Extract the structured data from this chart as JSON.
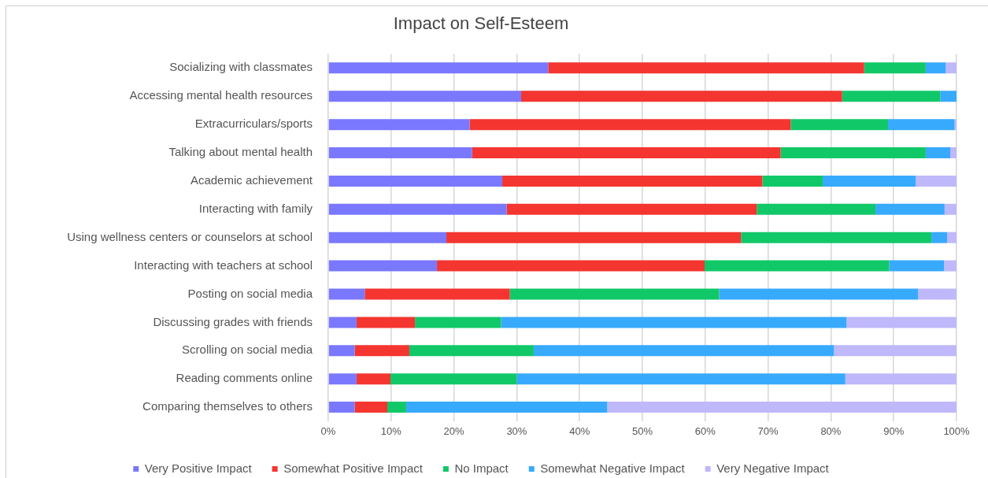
{
  "chart_data": {
    "type": "bar",
    "title": "Impact on Self-Esteem",
    "orientation": "horizontal",
    "stacked": true,
    "categories": [
      "Socializing with classmates",
      "Accessing mental health resources",
      "Extracurriculars/sports",
      "Talking about mental health",
      "Academic achievement",
      "Interacting with family",
      "Using wellness centers or counselors at school",
      "Interacting with teachers at school",
      "Posting on social media",
      "Discussing grades with friends",
      "Scrolling on social media",
      "Reading comments online",
      "Comparing themselves to others"
    ],
    "series": [
      {
        "name": "Very Positive Impact",
        "color": "#7a78fe",
        "values": [
          35.0,
          30.7,
          22.5,
          22.9,
          27.7,
          28.4,
          18.8,
          17.3,
          5.8,
          4.5,
          4.2,
          4.5,
          4.2
        ]
      },
      {
        "name": "Somewhat Positive Impact",
        "color": "#f43530",
        "values": [
          50.3,
          51.1,
          51.1,
          49.1,
          41.4,
          39.8,
          46.9,
          42.6,
          23.1,
          9.3,
          8.7,
          5.4,
          5.2
        ]
      },
      {
        "name": "No Impact",
        "color": "#11c868",
        "values": [
          9.8,
          15.6,
          15.5,
          23.1,
          9.6,
          18.9,
          30.3,
          29.4,
          33.3,
          13.7,
          19.8,
          20.1,
          3.0
        ]
      },
      {
        "name": "Somewhat Negative Impact",
        "color": "#38aafe",
        "values": [
          3.2,
          2.6,
          10.6,
          3.9,
          14.8,
          11.0,
          2.5,
          8.7,
          31.7,
          55.0,
          47.8,
          52.3,
          32.0
        ]
      },
      {
        "name": "Very Negative Impact",
        "color": "#bfb8fa",
        "values": [
          1.7,
          0,
          0.3,
          1.0,
          6.5,
          1.9,
          1.5,
          2.0,
          6.1,
          17.5,
          19.5,
          17.7,
          55.6
        ]
      }
    ],
    "xlim": [
      0,
      100
    ],
    "xticks": [
      {
        "value": 0,
        "label": "0%"
      },
      {
        "value": 10,
        "label": "10%"
      },
      {
        "value": 20,
        "label": "20%"
      },
      {
        "value": 30,
        "label": "30%"
      },
      {
        "value": 40,
        "label": "40%"
      },
      {
        "value": 50,
        "label": "50%"
      },
      {
        "value": 60,
        "label": "60%"
      },
      {
        "value": 70,
        "label": "70%"
      },
      {
        "value": 80,
        "label": "80%"
      },
      {
        "value": 90,
        "label": "90%"
      },
      {
        "value": 100,
        "label": "100%"
      }
    ],
    "grid": "x",
    "legend": "bottom"
  }
}
